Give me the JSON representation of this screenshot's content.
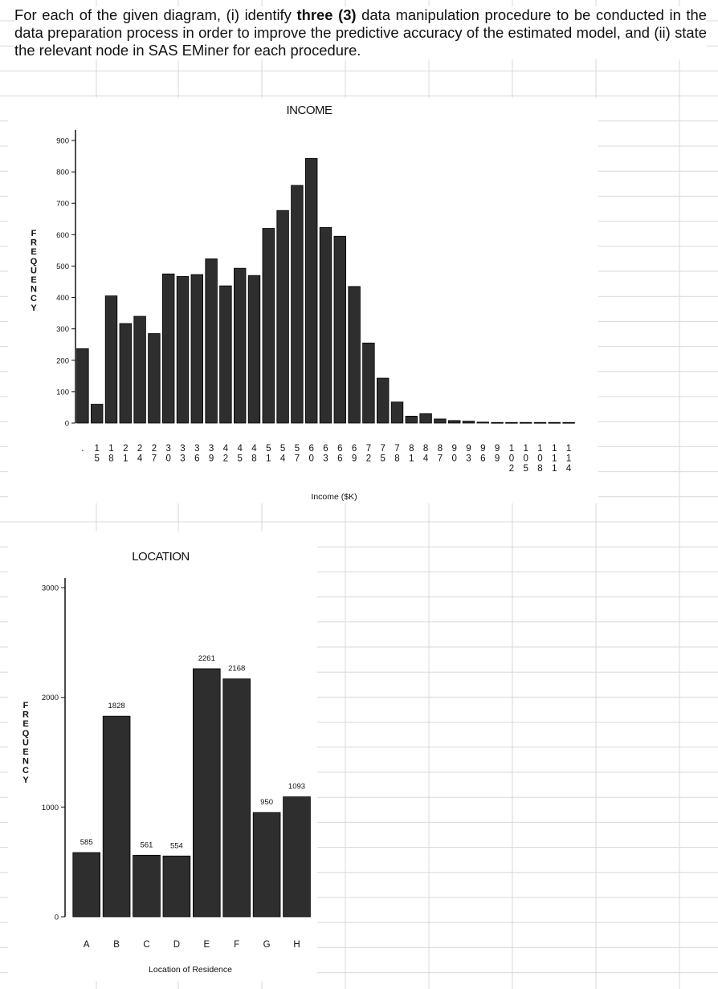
{
  "question": {
    "part1": "For each of the given diagram, (i) identify ",
    "emphasis": "three (3)",
    "part2": " data manipulation procedure to be conducted in the data preparation process in order to improve the predictive accuracy of the estimated model, and (ii) state the relevant node in SAS EMiner for each procedure."
  },
  "chart_data": [
    {
      "type": "bar",
      "title": "INCOME",
      "xlabel": "Income ($K)",
      "ylabel": "FREQUENCY",
      "ylim": [
        0,
        900
      ],
      "yticks": [
        0,
        100,
        200,
        300,
        400,
        500,
        600,
        700,
        800,
        900
      ],
      "categories": [
        ".",
        "15",
        "18",
        "21",
        "24",
        "27",
        "30",
        "33",
        "36",
        "39",
        "42",
        "45",
        "48",
        "51",
        "54",
        "57",
        "60",
        "63",
        "66",
        "69",
        "72",
        "75",
        "78",
        "81",
        "84",
        "87",
        "90",
        "93",
        "96",
        "99",
        "102",
        "105",
        "108",
        "111",
        "114"
      ],
      "values": [
        237,
        60,
        405,
        317,
        340,
        285,
        475,
        467,
        473,
        523,
        437,
        493,
        470,
        620,
        677,
        757,
        843,
        623,
        595,
        435,
        255,
        143,
        67,
        22,
        30,
        13,
        8,
        6,
        3,
        2,
        2,
        2,
        2,
        2,
        2
      ],
      "grid": false
    },
    {
      "type": "bar",
      "title": "LOCATION",
      "xlabel": "Location of Residence",
      "ylabel": "FREQUENCY",
      "ylim": [
        0,
        3000
      ],
      "yticks": [
        0,
        1000,
        2000,
        3000
      ],
      "categories": [
        "A",
        "B",
        "C",
        "D",
        "E",
        "F",
        "G",
        "H"
      ],
      "values": [
        585,
        1828,
        561,
        554,
        2261,
        2168,
        950,
        1093
      ],
      "data_labels": [
        "585",
        "1828",
        "561",
        "554",
        "2261",
        "2168",
        "950",
        "1093"
      ],
      "grid": false
    }
  ]
}
